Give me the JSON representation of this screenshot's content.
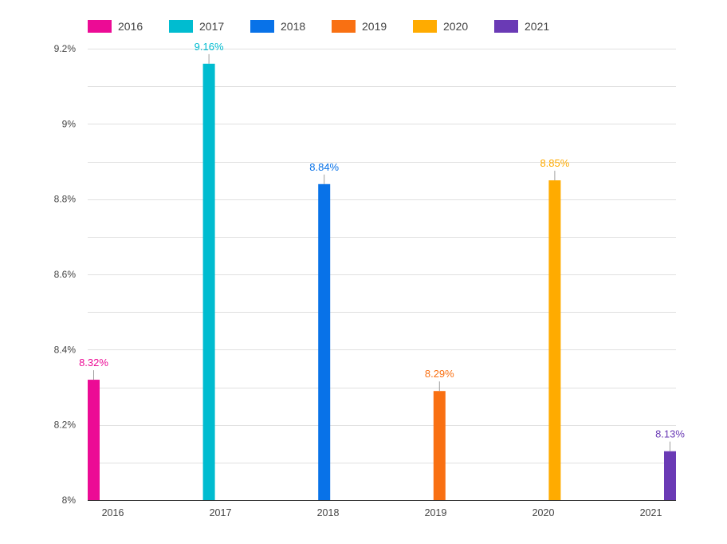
{
  "chart_data": {
    "type": "bar",
    "categories": [
      "2016",
      "2017",
      "2018",
      "2019",
      "2020",
      "2021"
    ],
    "series": [
      {
        "name": "2016",
        "color": "#ec0b95",
        "values": [
          8.32,
          null,
          null,
          null,
          null,
          null
        ],
        "label": "8.32%"
      },
      {
        "name": "2017",
        "color": "#00bcd0",
        "values": [
          null,
          9.16,
          null,
          null,
          null,
          null
        ],
        "label": "9.16%"
      },
      {
        "name": "2018",
        "color": "#0872e8",
        "values": [
          null,
          null,
          8.84,
          null,
          null,
          null
        ],
        "label": "8.84%"
      },
      {
        "name": "2019",
        "color": "#f97012",
        "values": [
          null,
          null,
          null,
          8.29,
          null,
          null
        ],
        "label": "8.29%"
      },
      {
        "name": "2020",
        "color": "#ffab00",
        "values": [
          null,
          null,
          null,
          null,
          8.85,
          null
        ],
        "label": "8.85%"
      },
      {
        "name": "2021",
        "color": "#6a3ab5",
        "values": [
          null,
          null,
          null,
          null,
          null,
          8.13
        ],
        "label": "8.13%"
      }
    ],
    "yticks": [
      {
        "value": 8.0,
        "label": "8%"
      },
      {
        "value": 8.2,
        "label": "8.2%"
      },
      {
        "value": 8.4,
        "label": "8.4%"
      },
      {
        "value": 8.6,
        "label": "8.6%"
      },
      {
        "value": 8.8,
        "label": "8.8%"
      },
      {
        "value": 9.0,
        "label": "9%"
      },
      {
        "value": 9.2,
        "label": "9.2%"
      }
    ],
    "ylim": [
      8.0,
      9.2
    ],
    "title": "",
    "xlabel": "",
    "ylabel": "",
    "legend": "top-left",
    "grid": true
  }
}
